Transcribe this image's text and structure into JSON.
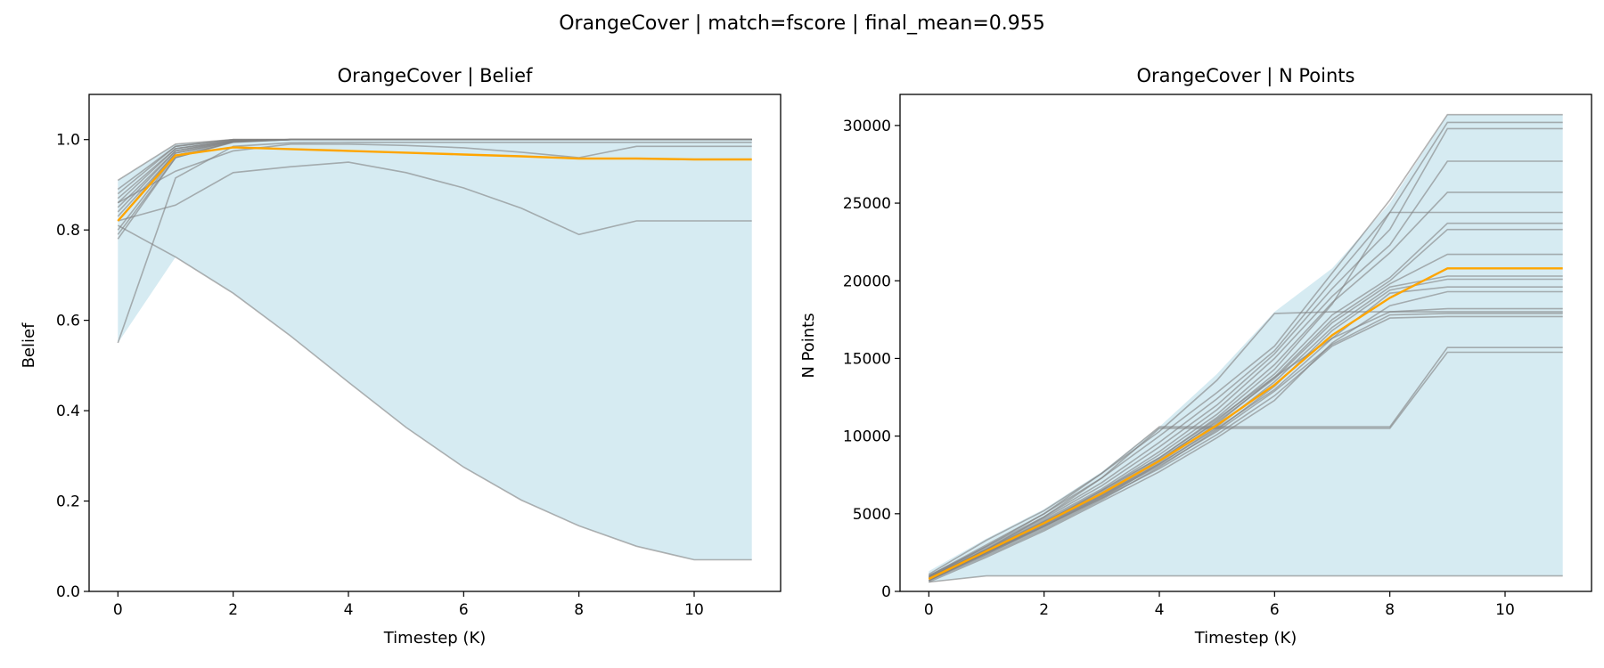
{
  "figure": {
    "suptitle": "OrangeCover | match=fscore | final_mean=0.955"
  },
  "colors": {
    "band": "#add8e6",
    "runs": "#808080",
    "mean": "#ffa500"
  },
  "chart_data": [
    {
      "type": "line",
      "title": "OrangeCover | Belief",
      "xlabel": "Timestep (K)",
      "ylabel": "Belief",
      "xlim": [
        -0.5,
        11.5
      ],
      "ylim": [
        0,
        1.1
      ],
      "xticks": [
        0,
        2,
        4,
        6,
        8,
        10
      ],
      "yticks": [
        0.0,
        0.2,
        0.4,
        0.6,
        0.8,
        1.0
      ],
      "ytick_labels": [
        "0.0",
        "0.2",
        "0.4",
        "0.6",
        "0.8",
        "1.0"
      ],
      "grid": false,
      "x": [
        0,
        1,
        2,
        3,
        4,
        5,
        6,
        7,
        8,
        9,
        10,
        11
      ],
      "band": {
        "upper": [
          0.91,
          0.99,
          1.0,
          1.0,
          1.0,
          1.0,
          1.0,
          1.0,
          1.0,
          1.0,
          1.0,
          1.0
        ],
        "lower": [
          0.55,
          0.74,
          0.66,
          0.565,
          0.463,
          0.363,
          0.275,
          0.202,
          0.145,
          0.1,
          0.07,
          0.07
        ]
      },
      "mean": [
        0.82,
        0.965,
        0.983,
        0.979,
        0.975,
        0.971,
        0.967,
        0.963,
        0.958,
        0.958,
        0.956,
        0.956
      ],
      "runs": [
        [
          0.91,
          0.99,
          1.0,
          1.0,
          1.0,
          1.0,
          1.0,
          1.0,
          1.0,
          1.0,
          1.0,
          1.0
        ],
        [
          0.89,
          0.985,
          1.0,
          1.0,
          1.0,
          1.0,
          1.0,
          1.0,
          1.0,
          1.0,
          1.0,
          1.0
        ],
        [
          0.88,
          0.985,
          1.0,
          1.0,
          1.0,
          1.0,
          1.0,
          1.0,
          1.0,
          1.0,
          1.0,
          1.0
        ],
        [
          0.87,
          0.98,
          0.998,
          1.0,
          1.0,
          1.0,
          1.0,
          1.0,
          1.0,
          1.0,
          1.0,
          1.0
        ],
        [
          0.86,
          0.98,
          0.998,
          1.0,
          1.0,
          1.0,
          1.0,
          1.0,
          1.0,
          1.0,
          1.0,
          1.0
        ],
        [
          0.85,
          0.975,
          0.997,
          1.0,
          1.0,
          1.0,
          1.0,
          1.0,
          1.0,
          1.0,
          1.0,
          1.0
        ],
        [
          0.84,
          0.975,
          0.997,
          1.0,
          1.0,
          1.0,
          1.0,
          1.0,
          1.0,
          1.0,
          1.0,
          1.0
        ],
        [
          0.83,
          0.97,
          0.996,
          1.0,
          1.0,
          1.0,
          1.0,
          1.0,
          1.0,
          1.0,
          1.0,
          1.0
        ],
        [
          0.82,
          0.97,
          0.996,
          1.0,
          1.0,
          1.0,
          1.0,
          1.0,
          1.0,
          1.0,
          1.0,
          1.0
        ],
        [
          0.8,
          0.965,
          0.995,
          1.0,
          1.0,
          1.0,
          1.0,
          1.0,
          1.0,
          1.0,
          1.0,
          1.0
        ],
        [
          0.79,
          0.96,
          0.995,
          1.0,
          1.0,
          1.0,
          1.0,
          1.0,
          1.0,
          1.0,
          1.0,
          1.0
        ],
        [
          0.78,
          0.96,
          0.994,
          1.0,
          1.0,
          1.0,
          1.0,
          1.0,
          1.0,
          1.0,
          1.0,
          1.0
        ],
        [
          0.86,
          0.93,
          0.975,
          0.99,
          0.99,
          0.987,
          0.982,
          0.972,
          0.96,
          0.985,
          0.985,
          0.985
        ],
        [
          0.55,
          0.915,
          0.985,
          0.993,
          0.994,
          0.994,
          0.994,
          0.994,
          0.994,
          0.994,
          0.994,
          0.994
        ],
        [
          0.82,
          0.855,
          0.927,
          0.94,
          0.95,
          0.927,
          0.893,
          0.848,
          0.79,
          0.82,
          0.82,
          0.82
        ],
        [
          0.81,
          0.74,
          0.66,
          0.565,
          0.463,
          0.363,
          0.275,
          0.202,
          0.145,
          0.1,
          0.07,
          0.07
        ]
      ]
    },
    {
      "type": "line",
      "title": "OrangeCover | N Points",
      "xlabel": "Timestep (K)",
      "ylabel": "N Points",
      "xlim": [
        -0.5,
        11.5
      ],
      "ylim": [
        0,
        32000
      ],
      "xticks": [
        0,
        2,
        4,
        6,
        8,
        10
      ],
      "yticks": [
        0,
        5000,
        10000,
        15000,
        20000,
        25000,
        30000
      ],
      "ytick_labels": [
        "0",
        "5000",
        "10000",
        "15000",
        "20000",
        "25000",
        "30000"
      ],
      "grid": false,
      "x": [
        0,
        1,
        2,
        3,
        4,
        5,
        6,
        7,
        8,
        9,
        10,
        11
      ],
      "band": {
        "upper": [
          1300,
          3400,
          5300,
          7700,
          10600,
          14000,
          18000,
          20800,
          25000,
          30700,
          30700,
          30700
        ],
        "lower": [
          600,
          1000,
          1000,
          1000,
          1000,
          1000,
          1000,
          1000,
          1000,
          1000,
          1000,
          1000
        ]
      },
      "mean": [
        800,
        2600,
        4400,
        6300,
        8400,
        10700,
        13300,
        16500,
        18900,
        20800,
        20800,
        20800
      ],
      "runs": [
        [
          1100,
          3300,
          5200,
          7600,
          10300,
          13600,
          17900,
          18000,
          18000,
          18000,
          18000,
          18000
        ],
        [
          1000,
          3000,
          5000,
          7300,
          10000,
          12800,
          15800,
          20500,
          25200,
          30700,
          30700,
          30700
        ],
        [
          900,
          2900,
          4800,
          7000,
          9600,
          12400,
          15500,
          20000,
          24400,
          30200,
          30200,
          30200
        ],
        [
          1000,
          2800,
          4700,
          6800,
          9300,
          12000,
          15300,
          19500,
          23300,
          29800,
          29800,
          29800
        ],
        [
          800,
          2700,
          4600,
          6600,
          9000,
          11700,
          15000,
          19000,
          22300,
          27700,
          27700,
          27700
        ],
        [
          900,
          2600,
          4500,
          6500,
          8800,
          11400,
          14600,
          18600,
          21800,
          25700,
          25700,
          25700
        ],
        [
          700,
          2500,
          4400,
          6400,
          8600,
          11200,
          14300,
          18500,
          24400,
          24400,
          24400,
          24400
        ],
        [
          800,
          2600,
          4300,
          6200,
          8400,
          11000,
          14000,
          17800,
          20200,
          23700,
          23700,
          23700
        ],
        [
          700,
          2500,
          4200,
          6100,
          8300,
          10800,
          13800,
          17500,
          20000,
          23300,
          23300,
          23300
        ],
        [
          900,
          2700,
          4500,
          6300,
          8500,
          10900,
          13700,
          17300,
          19800,
          21700,
          21700,
          21700
        ],
        [
          800,
          2400,
          4100,
          6000,
          8200,
          10600,
          13500,
          17000,
          19600,
          20300,
          20300,
          20300
        ],
        [
          700,
          2300,
          4000,
          5900,
          8000,
          10400,
          13200,
          16800,
          19400,
          20100,
          20100,
          20100
        ],
        [
          800,
          2500,
          4300,
          6200,
          8200,
          10500,
          13000,
          16300,
          19200,
          19600,
          19600,
          19600
        ],
        [
          600,
          2200,
          3900,
          5800,
          7700,
          9900,
          12300,
          16000,
          18400,
          19300,
          19300,
          19300
        ],
        [
          900,
          2600,
          4400,
          6500,
          8600,
          11100,
          13800,
          16300,
          18000,
          18200,
          18200,
          18200
        ],
        [
          700,
          2400,
          4200,
          6100,
          8100,
          10300,
          12900,
          15900,
          17800,
          17900,
          17900,
          17900
        ],
        [
          800,
          2500,
          4200,
          6000,
          7900,
          10100,
          12600,
          15800,
          17600,
          17700,
          17700,
          17700
        ],
        [
          1000,
          2900,
          5000,
          7600,
          10600,
          10600,
          10600,
          10600,
          10600,
          15700,
          15700,
          15700
        ],
        [
          900,
          2700,
          4800,
          7300,
          10500,
          10500,
          10500,
          10500,
          10500,
          15400,
          15400,
          15400
        ],
        [
          600,
          1000,
          1000,
          1000,
          1000,
          1000,
          1000,
          1000,
          1000,
          1000,
          1000,
          1000
        ]
      ]
    }
  ]
}
